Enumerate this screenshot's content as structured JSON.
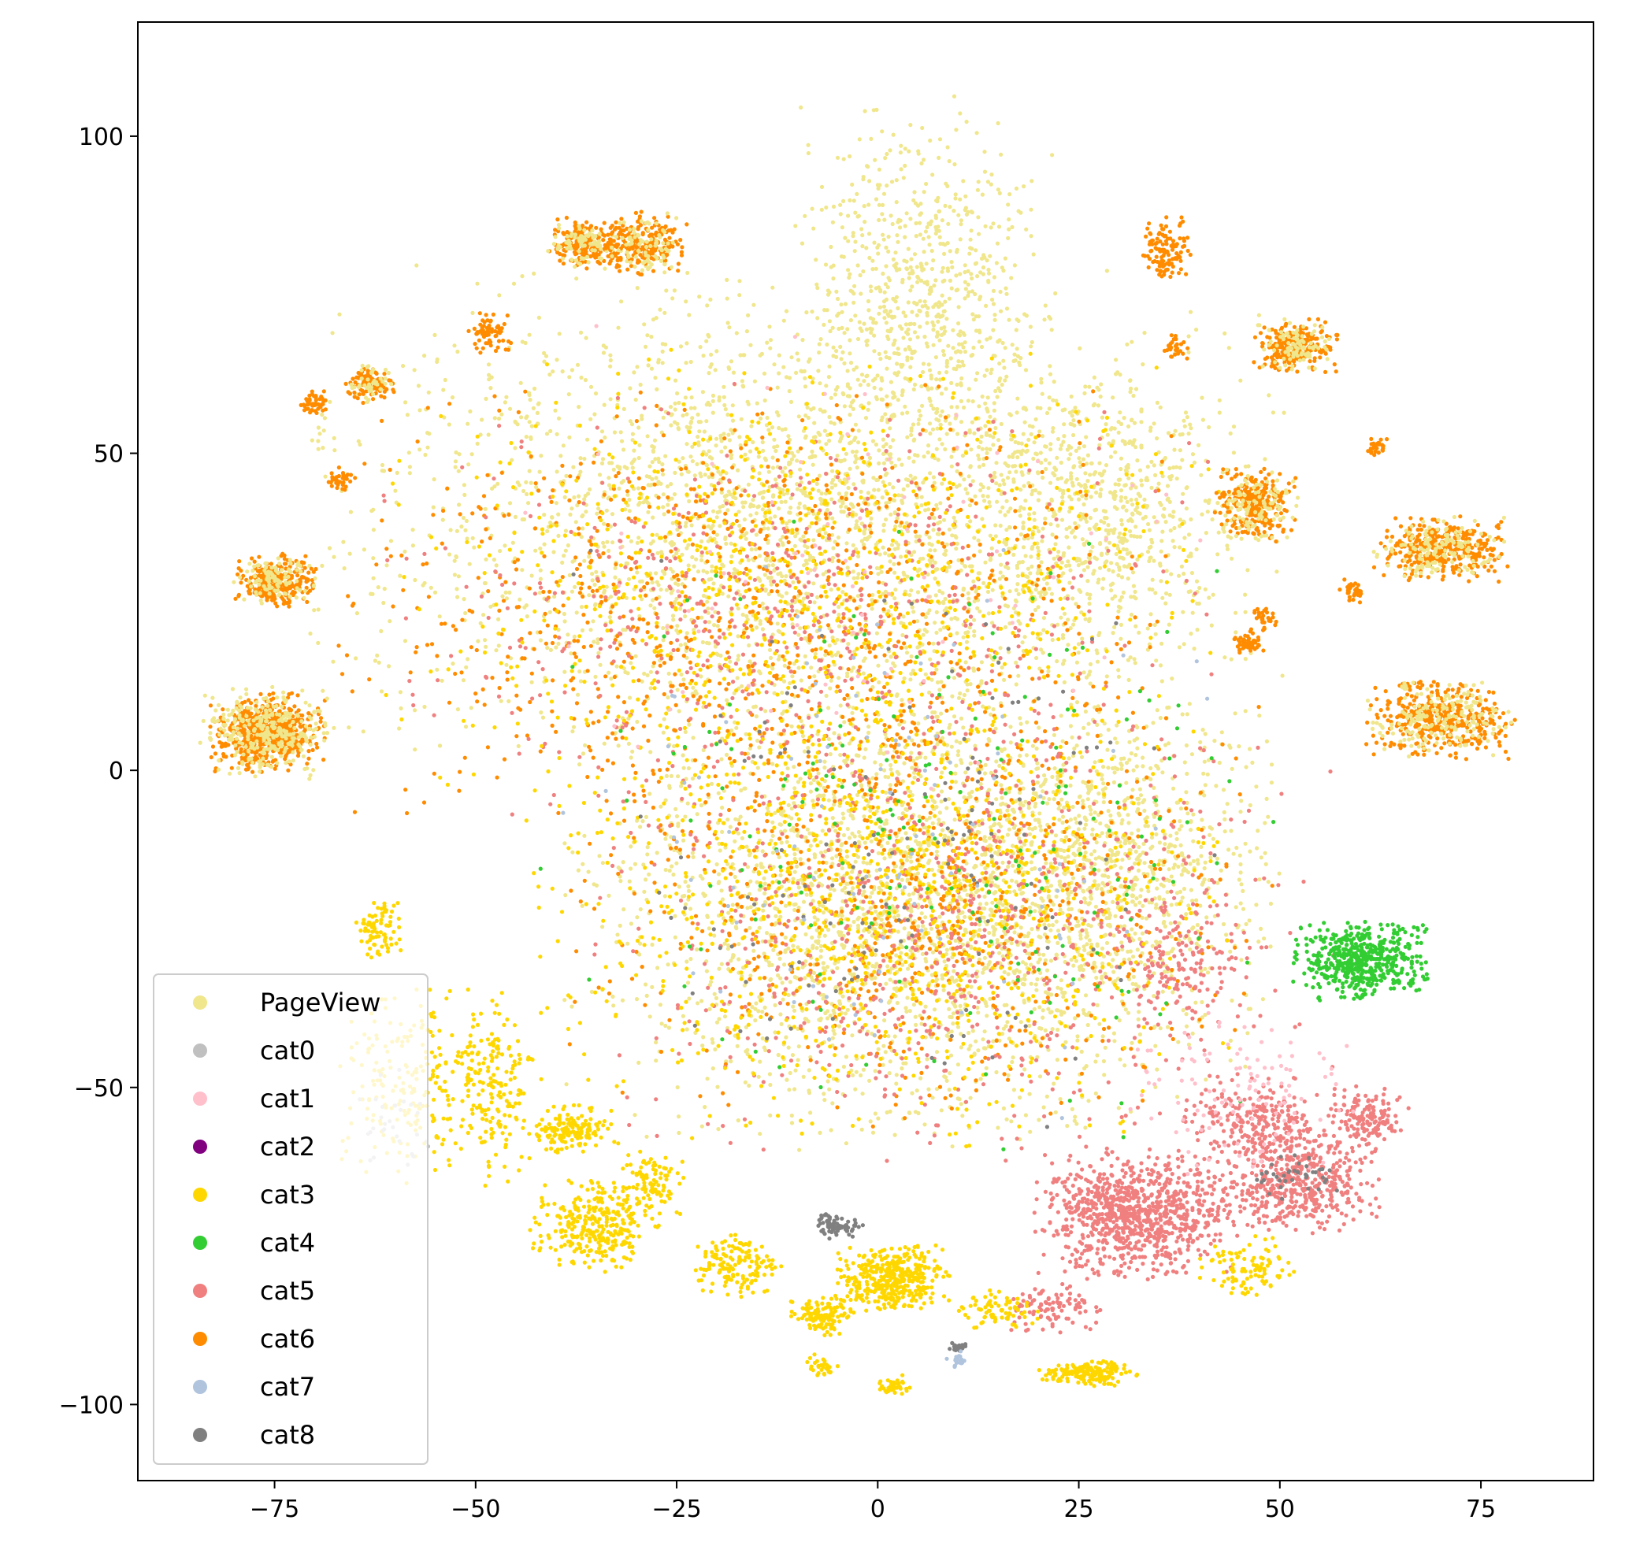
{
  "chart_data": {
    "type": "scatter",
    "title": "",
    "xlabel": "",
    "ylabel": "",
    "xlim": [
      -92,
      89
    ],
    "ylim": [
      -112,
      118
    ],
    "xticks": [
      -75,
      -50,
      -25,
      0,
      25,
      50,
      75
    ],
    "yticks": [
      -100,
      -50,
      0,
      50,
      100
    ],
    "xtick_labels": [
      "−75",
      "−50",
      "−25",
      "0",
      "25",
      "50",
      "75"
    ],
    "ytick_labels": [
      "−100",
      "−50",
      "0",
      "50",
      "100"
    ],
    "grid": false,
    "legend_position": "lower-left",
    "series": [
      {
        "name": "PageView",
        "color": "#f0e68c"
      },
      {
        "name": "cat0",
        "color": "#c0c0c0"
      },
      {
        "name": "cat1",
        "color": "#ffc0cb"
      },
      {
        "name": "cat2",
        "color": "#800080"
      },
      {
        "name": "cat3",
        "color": "#ffd700"
      },
      {
        "name": "cat4",
        "color": "#32cd32"
      },
      {
        "name": "cat5",
        "color": "#f08080"
      },
      {
        "name": "cat6",
        "color": "#ff8c00"
      },
      {
        "name": "cat7",
        "color": "#b0c4de"
      },
      {
        "name": "cat8",
        "color": "#808080"
      }
    ],
    "clusters": [
      {
        "series": "PageView",
        "cx": -10,
        "cy": 40,
        "rx": 58,
        "ry": 38,
        "n": 2600
      },
      {
        "series": "PageView",
        "cx": 5,
        "cy": -20,
        "rx": 42,
        "ry": 38,
        "n": 2400
      },
      {
        "series": "PageView",
        "cx": 5,
        "cy": 75,
        "rx": 16,
        "ry": 30,
        "n": 700
      },
      {
        "series": "PageView",
        "cx": 28,
        "cy": 40,
        "rx": 16,
        "ry": 22,
        "n": 500
      },
      {
        "series": "PageView",
        "cx": 30,
        "cy": -15,
        "rx": 20,
        "ry": 25,
        "n": 600
      },
      {
        "series": "cat6",
        "cx": -15,
        "cy": 25,
        "rx": 50,
        "ry": 35,
        "n": 900
      },
      {
        "series": "cat6",
        "cx": 5,
        "cy": -20,
        "rx": 42,
        "ry": 35,
        "n": 800
      },
      {
        "series": "cat5",
        "cx": -10,
        "cy": 25,
        "rx": 50,
        "ry": 35,
        "n": 600
      },
      {
        "series": "cat5",
        "cx": 10,
        "cy": -25,
        "rx": 45,
        "ry": 35,
        "n": 800
      },
      {
        "series": "cat5",
        "cx": 32,
        "cy": -70,
        "rx": 12,
        "ry": 10,
        "n": 900
      },
      {
        "series": "cat5",
        "cx": 52,
        "cy": -65,
        "rx": 10,
        "ry": 8,
        "n": 500
      },
      {
        "series": "cat5",
        "cx": 47,
        "cy": -55,
        "rx": 10,
        "ry": 7,
        "n": 250
      },
      {
        "series": "cat5",
        "cx": 61,
        "cy": -55,
        "rx": 5,
        "ry": 5,
        "n": 150
      },
      {
        "series": "cat5",
        "cx": 22,
        "cy": -85,
        "rx": 6,
        "ry": 4,
        "n": 100
      },
      {
        "series": "cat5",
        "cx": 38,
        "cy": -30,
        "rx": 8,
        "ry": 10,
        "n": 150
      },
      {
        "series": "cat3",
        "cx": 0,
        "cy": -20,
        "rx": 42,
        "ry": 38,
        "n": 1100
      },
      {
        "series": "cat3",
        "cx": -10,
        "cy": 30,
        "rx": 50,
        "ry": 35,
        "n": 800
      },
      {
        "series": "cat3",
        "cx": -58,
        "cy": -50,
        "rx": 10,
        "ry": 15,
        "n": 220
      },
      {
        "series": "cat3",
        "cx": -48,
        "cy": -50,
        "rx": 6,
        "ry": 15,
        "n": 180
      },
      {
        "series": "cat3",
        "cx": -38,
        "cy": -57,
        "rx": 5,
        "ry": 4,
        "n": 150
      },
      {
        "series": "cat3",
        "cx": -35,
        "cy": -72,
        "rx": 8,
        "ry": 7,
        "n": 300
      },
      {
        "series": "cat3",
        "cx": -28,
        "cy": -65,
        "rx": 4,
        "ry": 5,
        "n": 100
      },
      {
        "series": "cat3",
        "cx": -18,
        "cy": -78,
        "rx": 6,
        "ry": 5,
        "n": 150
      },
      {
        "series": "cat3",
        "cx": 2,
        "cy": -80,
        "rx": 7,
        "ry": 5,
        "n": 400
      },
      {
        "series": "cat3",
        "cx": -7,
        "cy": -86,
        "rx": 4,
        "ry": 3,
        "n": 120
      },
      {
        "series": "cat3",
        "cx": -62,
        "cy": -25,
        "rx": 3,
        "ry": 5,
        "n": 80
      },
      {
        "series": "cat3",
        "cx": 26,
        "cy": -95,
        "rx": 6,
        "ry": 2,
        "n": 180
      },
      {
        "series": "cat3",
        "cx": 2,
        "cy": -97,
        "rx": 2,
        "ry": 2,
        "n": 40
      },
      {
        "series": "cat3",
        "cx": -7,
        "cy": -94,
        "rx": 2,
        "ry": 2,
        "n": 30
      },
      {
        "series": "cat3",
        "cx": 46,
        "cy": -78,
        "rx": 6,
        "ry": 5,
        "n": 100
      },
      {
        "series": "cat3",
        "cx": 15,
        "cy": -85,
        "rx": 5,
        "ry": 3,
        "n": 80
      },
      {
        "series": "cat4",
        "cx": 60,
        "cy": -30,
        "rx": 8,
        "ry": 6,
        "n": 550
      },
      {
        "series": "cat4",
        "cx": 5,
        "cy": -10,
        "rx": 45,
        "ry": 50,
        "n": 200
      },
      {
        "series": "cat6",
        "cx": -76,
        "cy": 6,
        "rx": 7,
        "ry": 6,
        "n": 600
      },
      {
        "series": "PageView",
        "cx": -76,
        "cy": 6,
        "rx": 8,
        "ry": 7,
        "n": 300
      },
      {
        "series": "cat6",
        "cx": -75,
        "cy": 30,
        "rx": 5,
        "ry": 4,
        "n": 250
      },
      {
        "series": "PageView",
        "cx": -75,
        "cy": 30,
        "rx": 5,
        "ry": 4,
        "n": 100
      },
      {
        "series": "cat6",
        "cx": -63,
        "cy": 61,
        "rx": 3,
        "ry": 3,
        "n": 100
      },
      {
        "series": "PageView",
        "cx": -63,
        "cy": 61,
        "rx": 3,
        "ry": 3,
        "n": 40
      },
      {
        "series": "cat6",
        "cx": -70,
        "cy": 58,
        "rx": 2,
        "ry": 2,
        "n": 50
      },
      {
        "series": "cat6",
        "cx": -67,
        "cy": 46,
        "rx": 2,
        "ry": 2,
        "n": 40
      },
      {
        "series": "cat6",
        "cx": -48,
        "cy": 69,
        "rx": 3,
        "ry": 3,
        "n": 70
      },
      {
        "series": "cat6",
        "cx": -36,
        "cy": 83,
        "rx": 5,
        "ry": 4,
        "n": 200
      },
      {
        "series": "PageView",
        "cx": -36,
        "cy": 83,
        "rx": 5,
        "ry": 4,
        "n": 80
      },
      {
        "series": "cat6",
        "cx": -29,
        "cy": 83,
        "rx": 5,
        "ry": 5,
        "n": 200
      },
      {
        "series": "PageView",
        "cx": -29,
        "cy": 83,
        "rx": 5,
        "ry": 5,
        "n": 80
      },
      {
        "series": "cat6",
        "cx": 36,
        "cy": 82,
        "rx": 3,
        "ry": 5,
        "n": 120
      },
      {
        "series": "cat6",
        "cx": 37,
        "cy": 67,
        "rx": 1.5,
        "ry": 2,
        "n": 30
      },
      {
        "series": "cat6",
        "cx": 52,
        "cy": 67,
        "rx": 5,
        "ry": 4,
        "n": 220
      },
      {
        "series": "PageView",
        "cx": 52,
        "cy": 67,
        "rx": 5,
        "ry": 4,
        "n": 90
      },
      {
        "series": "cat6",
        "cx": 47,
        "cy": 42,
        "rx": 5,
        "ry": 6,
        "n": 250
      },
      {
        "series": "PageView",
        "cx": 47,
        "cy": 42,
        "rx": 5,
        "ry": 6,
        "n": 100
      },
      {
        "series": "cat6",
        "cx": 62,
        "cy": 51,
        "rx": 1.5,
        "ry": 1.5,
        "n": 30
      },
      {
        "series": "cat6",
        "cx": 70,
        "cy": 35,
        "rx": 8,
        "ry": 5,
        "n": 350
      },
      {
        "series": "PageView",
        "cx": 70,
        "cy": 35,
        "rx": 8,
        "ry": 5,
        "n": 140
      },
      {
        "series": "cat6",
        "cx": 70,
        "cy": 8,
        "rx": 9,
        "ry": 6,
        "n": 400
      },
      {
        "series": "PageView",
        "cx": 70,
        "cy": 8,
        "rx": 9,
        "ry": 6,
        "n": 180
      },
      {
        "series": "cat6",
        "cx": 59,
        "cy": 28,
        "rx": 1.5,
        "ry": 2,
        "n": 30
      },
      {
        "series": "cat6",
        "cx": 46,
        "cy": 20,
        "rx": 2,
        "ry": 2,
        "n": 50
      },
      {
        "series": "cat6",
        "cx": 48,
        "cy": 24,
        "rx": 2,
        "ry": 2,
        "n": 30
      },
      {
        "series": "cat1",
        "cx": 45,
        "cy": -50,
        "rx": 15,
        "ry": 15,
        "n": 120
      },
      {
        "series": "cat1",
        "cx": 0,
        "cy": 30,
        "rx": 45,
        "ry": 40,
        "n": 80
      },
      {
        "series": "cat8",
        "cx": -5,
        "cy": -72,
        "rx": 3,
        "ry": 2,
        "n": 80
      },
      {
        "series": "cat8",
        "cx": 10,
        "cy": -91,
        "rx": 1,
        "ry": 1,
        "n": 20
      },
      {
        "series": "cat8",
        "cx": 0,
        "cy": -10,
        "rx": 40,
        "ry": 45,
        "n": 150
      },
      {
        "series": "cat8",
        "cx": 52,
        "cy": -64,
        "rx": 5,
        "ry": 4,
        "n": 40
      },
      {
        "series": "cat7",
        "cx": 10,
        "cy": -93,
        "rx": 1.5,
        "ry": 1.5,
        "n": 20
      },
      {
        "series": "cat7",
        "cx": 0,
        "cy": -10,
        "rx": 40,
        "ry": 45,
        "n": 100
      },
      {
        "series": "cat0",
        "cx": -60,
        "cy": -55,
        "rx": 6,
        "ry": 10,
        "n": 30
      }
    ]
  }
}
